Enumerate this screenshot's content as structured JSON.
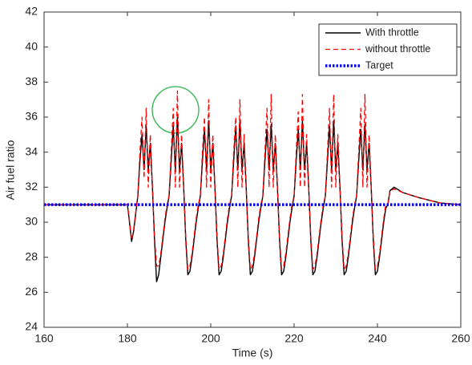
{
  "chart_data": {
    "type": "line",
    "xlabel": "Time (s)",
    "ylabel": "Air fuel ratio",
    "xlim": [
      160,
      260
    ],
    "xticks": [
      160,
      180,
      200,
      220,
      240,
      260
    ],
    "ylim": [
      24,
      42
    ],
    "yticks": [
      24,
      26,
      28,
      30,
      32,
      34,
      36,
      38,
      40,
      42
    ],
    "legend": "upper right",
    "series": [
      {
        "name": "With throttle",
        "color": "#000000",
        "style": "solid",
        "x": [
          160,
          170,
          180,
          180.5,
          181,
          181.5,
          182,
          182.5,
          183,
          183.5,
          184,
          184.5,
          185,
          185.5,
          186,
          186.5,
          187,
          187.5,
          188,
          188.5,
          189,
          189.5,
          190,
          190.5,
          191,
          191.5,
          192,
          192.5,
          193,
          193.5,
          194,
          194.5,
          195,
          195.5,
          196,
          196.5,
          197,
          197.5,
          198,
          198.5,
          199,
          199.5,
          200,
          200.5,
          201,
          201.5,
          202,
          202.5,
          203,
          203.5,
          204,
          204.5,
          205,
          205.5,
          206,
          206.5,
          207,
          207.5,
          208,
          208.5,
          209,
          209.5,
          210,
          210.5,
          211,
          211.5,
          212,
          212.5,
          213,
          213.5,
          214,
          214.5,
          215,
          215.5,
          216,
          216.5,
          217,
          217.5,
          218,
          218.5,
          219,
          219.5,
          220,
          220.5,
          221,
          221.5,
          222,
          222.5,
          223,
          223.5,
          224,
          224.5,
          225,
          225.5,
          226,
          226.5,
          227,
          227.5,
          228,
          228.5,
          229,
          229.5,
          230,
          230.5,
          231,
          231.5,
          232,
          232.5,
          233,
          233.5,
          234,
          234.5,
          235,
          235.5,
          236,
          236.5,
          237,
          237.5,
          238,
          238.5,
          239,
          239.5,
          240,
          240.5,
          241,
          241.5,
          242,
          242.5,
          243,
          244,
          246,
          250,
          255,
          260
        ],
        "values": [
          31,
          31,
          31,
          30,
          28.9,
          29.5,
          30.5,
          31.5,
          33.5,
          35,
          33,
          35.5,
          33,
          34.5,
          32,
          29,
          26.6,
          27,
          28,
          29,
          30,
          30.8,
          31.5,
          33.5,
          35.5,
          33,
          36,
          33,
          34.5,
          32,
          29,
          27,
          27.2,
          28,
          29,
          30,
          30.8,
          31.5,
          33.5,
          35.3,
          33,
          35.8,
          33,
          34.5,
          32,
          29,
          27,
          27.2,
          28,
          29,
          30,
          30.8,
          31.5,
          33.5,
          35.5,
          33,
          35.8,
          33,
          34.5,
          32,
          29,
          27,
          27.2,
          28,
          29,
          30,
          30.8,
          31.5,
          33.5,
          35.3,
          33,
          35.6,
          33,
          34.5,
          32,
          29,
          27,
          27.2,
          28,
          29,
          30,
          30.8,
          31.5,
          33.5,
          35.3,
          33,
          35.8,
          33,
          34.5,
          32,
          29,
          27,
          27.2,
          28,
          29,
          30,
          30.8,
          31.5,
          33.5,
          35.5,
          33,
          35.8,
          33,
          34.5,
          32,
          29,
          27,
          27.2,
          28,
          29,
          30,
          30.8,
          31.5,
          33.5,
          35.3,
          33,
          35.6,
          33,
          34.5,
          32,
          29,
          27,
          27.2,
          28,
          29,
          30,
          30.8,
          31,
          31.8,
          32,
          31.7,
          31.4,
          31.1,
          31
        ]
      },
      {
        "name": "without throttle",
        "color": "#ff0000",
        "style": "dashed",
        "x": [
          160,
          170,
          180,
          180.5,
          181,
          181.5,
          182,
          182.5,
          183,
          183.5,
          184,
          184.5,
          185,
          185.5,
          186,
          186.5,
          187,
          187.5,
          188,
          188.5,
          189,
          189.5,
          190,
          190.5,
          191,
          191.5,
          192,
          192.5,
          193,
          193.5,
          194,
          194.5,
          195,
          195.5,
          196,
          196.5,
          197,
          197.5,
          198,
          198.5,
          199,
          199.5,
          200,
          200.5,
          201,
          201.5,
          202,
          202.5,
          203,
          203.5,
          204,
          204.5,
          205,
          205.5,
          206,
          206.5,
          207,
          207.5,
          208,
          208.5,
          209,
          209.5,
          210,
          210.5,
          211,
          211.5,
          212,
          212.5,
          213,
          213.5,
          214,
          214.5,
          215,
          215.5,
          216,
          216.5,
          217,
          217.5,
          218,
          218.5,
          219,
          219.5,
          220,
          220.5,
          221,
          221.5,
          222,
          222.5,
          223,
          223.5,
          224,
          224.5,
          225,
          225.5,
          226,
          226.5,
          227,
          227.5,
          228,
          228.5,
          229,
          229.5,
          230,
          230.5,
          231,
          231.5,
          232,
          232.5,
          233,
          233.5,
          234,
          234.5,
          235,
          235.5,
          236,
          236.5,
          237,
          237.5,
          238,
          238.5,
          239,
          239.5,
          240,
          240.5,
          241,
          241.5,
          242,
          242.5,
          243,
          244,
          246,
          250,
          255,
          260
        ],
        "values": [
          31,
          31,
          31,
          30.1,
          29,
          29.6,
          30.6,
          31.5,
          34,
          36,
          32.5,
          36.5,
          32,
          35,
          32,
          29.2,
          27.5,
          27.5,
          28.2,
          29.2,
          30.2,
          31,
          31.5,
          34,
          36.5,
          32,
          37.5,
          32,
          35,
          32,
          29.2,
          27.3,
          27.5,
          28.2,
          29.2,
          30.2,
          31,
          31.5,
          34,
          36,
          32,
          37,
          32,
          35,
          32,
          29.2,
          27.3,
          27.5,
          28.2,
          29.2,
          30.2,
          31,
          31.5,
          34,
          36,
          32,
          37,
          32,
          35,
          32,
          29.2,
          27.3,
          27.5,
          28.2,
          29.2,
          30.2,
          31,
          31.5,
          34,
          36.5,
          32,
          37.3,
          32,
          35,
          32,
          29.2,
          27.3,
          27.5,
          28.2,
          29.2,
          30.2,
          31,
          31.5,
          34,
          36.3,
          32,
          37.3,
          32,
          35,
          32,
          29.2,
          27.3,
          27.5,
          28.2,
          29.2,
          30.2,
          31,
          31.5,
          34,
          36.5,
          32,
          37.3,
          32,
          35,
          32,
          29.2,
          27.3,
          27.5,
          28.2,
          29.2,
          30.2,
          31,
          31.5,
          34,
          36.5,
          32,
          37.3,
          32,
          35,
          32,
          29.2,
          27.3,
          27.5,
          28.2,
          29.2,
          30.2,
          31,
          31,
          31.8,
          31.9,
          31.7,
          31.4,
          31.1,
          31
        ]
      },
      {
        "name": "Target",
        "color": "#0000ff",
        "style": "dotted",
        "x": [
          160,
          260
        ],
        "values": [
          31,
          31
        ]
      }
    ]
  }
}
